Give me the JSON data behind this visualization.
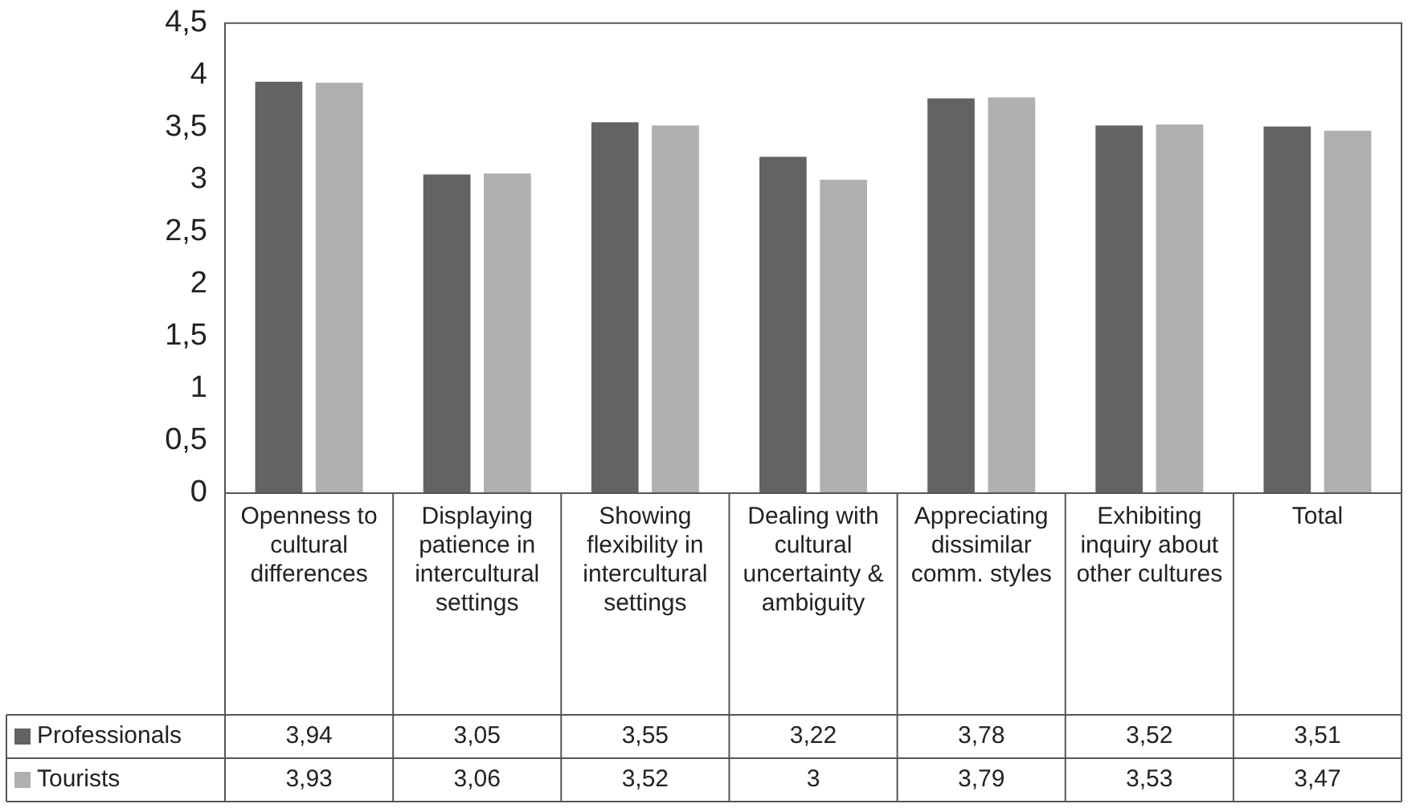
{
  "chart_data": {
    "type": "bar",
    "categories": [
      "Openness to cultural differences",
      "Displaying patience in intercultural settings",
      "Showing flexibility in intercultural settings",
      "Dealing with cultural uncertainty & ambiguity",
      "Appreciating dissimilar comm. styles",
      "Exhibiting inquiry about other cultures",
      "Total"
    ],
    "series": [
      {
        "name": "Professionals",
        "color": "#636363",
        "values": [
          3.94,
          3.05,
          3.55,
          3.22,
          3.78,
          3.52,
          3.51
        ],
        "value_labels": [
          "3,94",
          "3,05",
          "3,55",
          "3,22",
          "3,78",
          "3,52",
          "3,51"
        ]
      },
      {
        "name": "Tourists",
        "color": "#b0b0b0",
        "values": [
          3.93,
          3.06,
          3.52,
          3,
          3.79,
          3.53,
          3.47
        ],
        "value_labels": [
          "3,93",
          "3,06",
          "3,52",
          "3",
          "3,79",
          "3,53",
          "3,47"
        ]
      }
    ],
    "ylim": [
      0,
      4.5
    ],
    "yticks": [
      0,
      {
        "value": 0.5,
        "label": "0,5"
      },
      1,
      {
        "value": 1.5,
        "label": "1,5"
      },
      2,
      {
        "value": 2.5,
        "label": "2,5"
      },
      3,
      {
        "value": 3.5,
        "label": "3,5"
      },
      4,
      {
        "value": 4.5,
        "label": "4,5"
      }
    ],
    "grid": false,
    "legend": "bottom"
  }
}
